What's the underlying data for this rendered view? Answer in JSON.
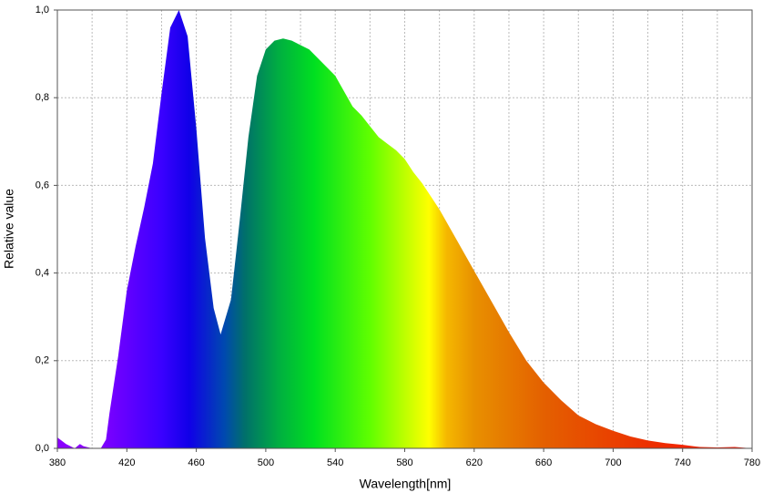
{
  "chart_data": {
    "type": "area",
    "xlabel": "Wavelength[nm]",
    "ylabel": "Relative value",
    "x": [
      380,
      385,
      390,
      393,
      395,
      400,
      405,
      408,
      410,
      415,
      420,
      425,
      430,
      435,
      440,
      445,
      450,
      455,
      460,
      465,
      470,
      474,
      480,
      485,
      490,
      495,
      500,
      505,
      510,
      515,
      520,
      525,
      530,
      535,
      540,
      545,
      550,
      555,
      560,
      565,
      570,
      575,
      580,
      585,
      590,
      595,
      600,
      610,
      620,
      630,
      640,
      650,
      660,
      670,
      680,
      690,
      700,
      710,
      720,
      730,
      740,
      750,
      760,
      770,
      780
    ],
    "values": [
      0.025,
      0.01,
      0.0,
      0.01,
      0.005,
      0.0,
      0.0,
      0.02,
      0.08,
      0.21,
      0.36,
      0.46,
      0.55,
      0.65,
      0.81,
      0.96,
      1.0,
      0.94,
      0.73,
      0.48,
      0.32,
      0.26,
      0.34,
      0.52,
      0.71,
      0.85,
      0.91,
      0.93,
      0.935,
      0.93,
      0.92,
      0.91,
      0.89,
      0.87,
      0.85,
      0.815,
      0.78,
      0.76,
      0.735,
      0.71,
      0.695,
      0.68,
      0.66,
      0.63,
      0.605,
      0.575,
      0.545,
      0.475,
      0.405,
      0.335,
      0.265,
      0.2,
      0.15,
      0.11,
      0.075,
      0.055,
      0.04,
      0.027,
      0.018,
      0.012,
      0.008,
      0.003,
      0.002,
      0.003,
      0.0
    ],
    "xlim": [
      380,
      780
    ],
    "xticks": [
      380,
      420,
      460,
      500,
      540,
      580,
      620,
      660,
      700,
      740,
      780
    ],
    "xgrid": [
      400,
      440,
      480,
      520,
      560,
      600,
      640,
      680,
      720,
      760
    ],
    "ylim": [
      0,
      1
    ],
    "yticks": [
      {
        "value": 0,
        "label": "0,0"
      },
      {
        "value": 0.2,
        "label": "0,2"
      },
      {
        "value": 0.4,
        "label": "0,4"
      },
      {
        "value": 0.6,
        "label": "0,6"
      },
      {
        "value": 0.8,
        "label": "0,8"
      },
      {
        "value": 1,
        "label": "1,0"
      }
    ],
    "grid": true
  }
}
